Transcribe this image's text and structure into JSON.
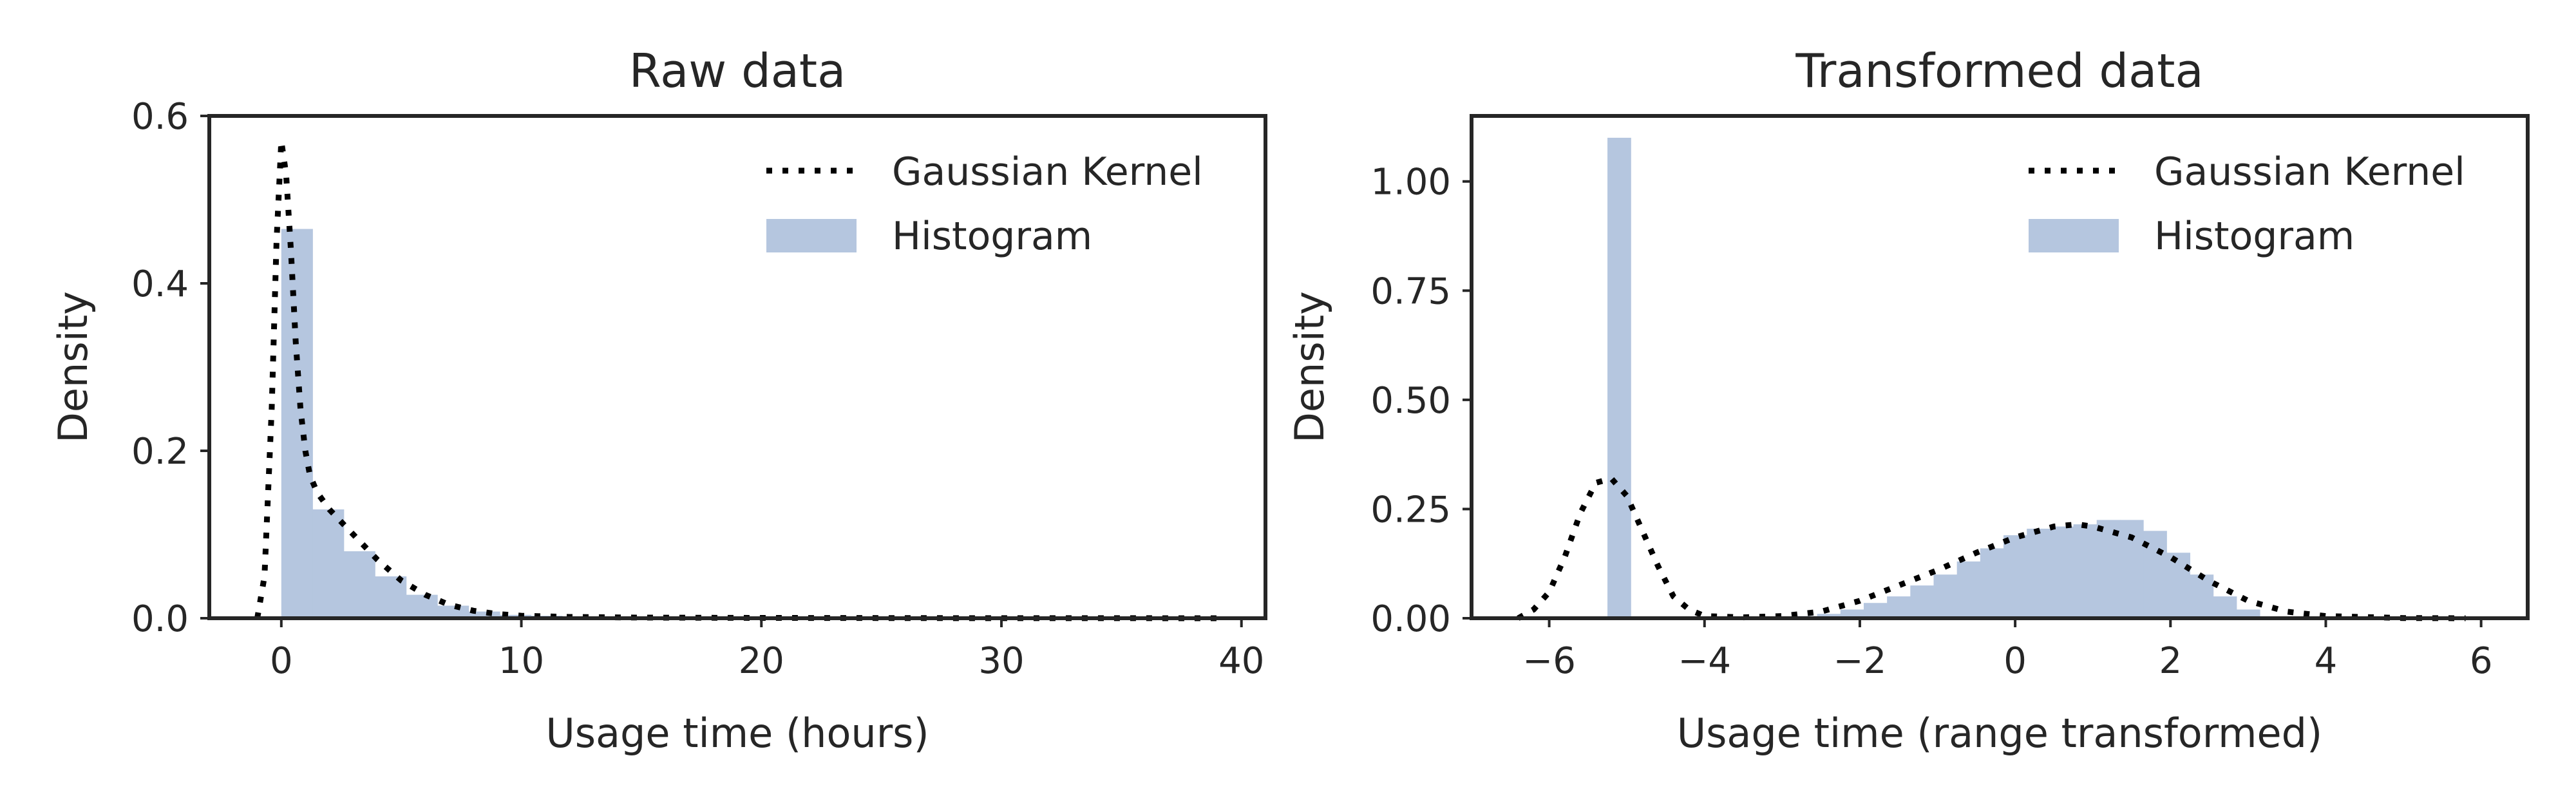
{
  "chart_data": [
    {
      "type": "bar",
      "title": "Raw data",
      "xlabel": "Usage time (hours)",
      "ylabel": "Density",
      "xlim": [
        -3,
        41
      ],
      "ylim": [
        0,
        0.6
      ],
      "xticks": [
        0,
        10,
        20,
        30,
        40
      ],
      "xtick_labels": [
        "0",
        "10",
        "20",
        "30",
        "40"
      ],
      "yticks": [
        0,
        0.2,
        0.4,
        0.6
      ],
      "ytick_labels": [
        "0.0",
        "0.2",
        "0.4",
        "0.6"
      ],
      "grid": false,
      "legend": {
        "placement": "top-right",
        "entries": [
          {
            "label": "Gaussian Kernel",
            "style": "dotted-line"
          },
          {
            "label": "Histogram",
            "style": "patch"
          }
        ]
      },
      "histogram": {
        "name": "Histogram",
        "color": "#b5c6df",
        "bin_edges": [
          0,
          1.3,
          2.6,
          3.9,
          5.2,
          6.5,
          7.8,
          9.1,
          10.4,
          11.7,
          13.0,
          14.3,
          15.6,
          16.9,
          18.2,
          19.5,
          20.8,
          22.1,
          23.4,
          24.7,
          26.0,
          27.3,
          28.6,
          29.9,
          31.2,
          32.5,
          33.8,
          35.1,
          36.4,
          37.7,
          39.0
        ],
        "values": [
          0.465,
          0.13,
          0.08,
          0.05,
          0.028,
          0.015,
          0.008,
          0.004,
          0.003,
          0.002,
          0.001,
          0.001,
          0.001,
          0.0005,
          0.0005,
          0.0003,
          0.0003,
          0.0002,
          0.0002,
          0.0002,
          0.0001,
          0.0001,
          0.0001,
          0.0001,
          0.0001,
          0.0001,
          0.0001,
          0.0001,
          0.0001,
          0.0001
        ]
      },
      "kde": {
        "name": "Gaussian Kernel",
        "color": "#000000",
        "x": [
          -1.0,
          -0.7,
          -0.4,
          -0.2,
          0.0,
          0.2,
          0.4,
          0.6,
          0.8,
          1.0,
          1.2,
          1.5,
          2.0,
          2.5,
          3.0,
          4.0,
          5.0,
          6.0,
          7.0,
          8.0,
          9.0,
          10.0,
          12.0,
          15.0,
          20.0,
          25.0,
          30.0,
          35.0,
          39.0
        ],
        "y": [
          0.0,
          0.05,
          0.25,
          0.45,
          0.57,
          0.53,
          0.44,
          0.33,
          0.25,
          0.2,
          0.17,
          0.15,
          0.13,
          0.115,
          0.1,
          0.07,
          0.045,
          0.028,
          0.016,
          0.009,
          0.005,
          0.003,
          0.0015,
          0.0008,
          0.0004,
          0.0002,
          0.0001,
          0.0001,
          0.0
        ]
      }
    },
    {
      "type": "bar",
      "title": "Transformed data",
      "xlabel": "Usage time (range transformed)",
      "ylabel": "Density",
      "xlim": [
        -7,
        6.6
      ],
      "ylim": [
        0,
        1.15
      ],
      "xticks": [
        -6,
        -4,
        -2,
        0,
        2,
        4,
        6
      ],
      "xtick_labels": [
        "−6",
        "−4",
        "−2",
        "0",
        "2",
        "4",
        "6"
      ],
      "yticks": [
        0,
        0.25,
        0.5,
        0.75,
        1.0
      ],
      "ytick_labels": [
        "0.00",
        "0.25",
        "0.50",
        "0.75",
        "1.00"
      ],
      "grid": false,
      "legend": {
        "placement": "top-right",
        "entries": [
          {
            "label": "Gaussian Kernel",
            "style": "dotted-line"
          },
          {
            "label": "Histogram",
            "style": "patch"
          }
        ]
      },
      "histogram": {
        "name": "Histogram",
        "color": "#b5c6df",
        "bin_edges": [
          -5.25,
          -4.95,
          -4.65,
          -4.35,
          -4.05,
          -3.75,
          -3.45,
          -3.15,
          -2.85,
          -2.55,
          -2.25,
          -1.95,
          -1.65,
          -1.35,
          -1.05,
          -0.75,
          -0.45,
          -0.15,
          0.15,
          0.45,
          0.75,
          1.05,
          1.35,
          1.65,
          1.95,
          2.25,
          2.55,
          2.85,
          3.15
        ],
        "values": [
          1.1,
          0.0,
          0.0,
          0.0,
          0.0,
          0.0,
          0.0,
          0.0,
          0.005,
          0.01,
          0.02,
          0.035,
          0.05,
          0.075,
          0.1,
          0.13,
          0.16,
          0.19,
          0.205,
          0.21,
          0.215,
          0.225,
          0.225,
          0.2,
          0.15,
          0.1,
          0.05,
          0.02
        ]
      },
      "kde": {
        "name": "Gaussian Kernel",
        "color": "#000000",
        "x": [
          -6.4,
          -6.2,
          -6.0,
          -5.8,
          -5.6,
          -5.4,
          -5.2,
          -5.0,
          -4.8,
          -4.6,
          -4.4,
          -4.2,
          -4.0,
          -3.5,
          -3.0,
          -2.5,
          -2.0,
          -1.5,
          -1.0,
          -0.5,
          0.0,
          0.5,
          0.8,
          1.0,
          1.5,
          2.0,
          2.5,
          3.0,
          3.5,
          4.0,
          5.0,
          5.8
        ],
        "y": [
          0.0,
          0.02,
          0.06,
          0.14,
          0.24,
          0.31,
          0.32,
          0.28,
          0.2,
          0.12,
          0.05,
          0.02,
          0.005,
          0.002,
          0.005,
          0.015,
          0.04,
          0.075,
          0.11,
          0.15,
          0.185,
          0.21,
          0.215,
          0.21,
          0.185,
          0.14,
          0.085,
          0.04,
          0.015,
          0.005,
          0.0005,
          0.0
        ]
      }
    }
  ]
}
